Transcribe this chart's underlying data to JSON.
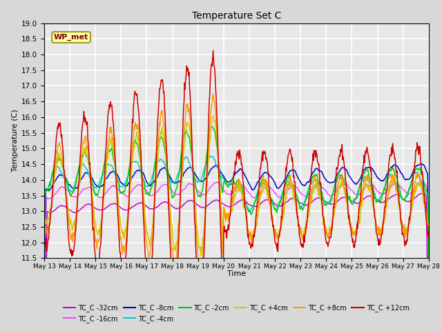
{
  "title": "Temperature Set C",
  "xlabel": "Time",
  "ylabel": "Temperature (C)",
  "ylim": [
    11.5,
    19.0
  ],
  "yticks": [
    11.5,
    12.0,
    12.5,
    13.0,
    13.5,
    14.0,
    14.5,
    15.0,
    15.5,
    16.0,
    16.5,
    17.0,
    17.5,
    18.0,
    18.5,
    19.0
  ],
  "wp_met_label": "WP_met",
  "series_colors": {
    "TC_C -32cm": "#cc00cc",
    "TC_C -16cm": "#ff44ff",
    "TC_C -8cm": "#0000cc",
    "TC_C -4cm": "#00cccc",
    "TC_C -2cm": "#00cc00",
    "TC_C +4cm": "#cccc00",
    "TC_C +8cm": "#ff9900",
    "TC_C +12cm": "#cc0000"
  },
  "background_color": "#d8d8d8",
  "plot_bg_color": "#e8e8e8",
  "grid_color": "#ffffff",
  "x_labels": [
    "May 13",
    "May 14",
    "May 15",
    "May 16",
    "May 17",
    "May 18",
    "May 19",
    "May 20",
    "May 21",
    "May 22",
    "May 23",
    "May 24",
    "May 25",
    "May 26",
    "May 27",
    "May 28"
  ]
}
